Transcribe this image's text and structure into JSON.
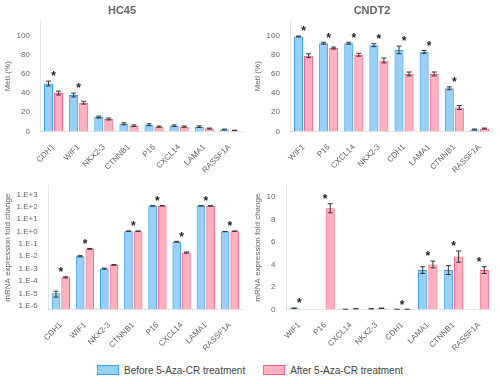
{
  "chart_data": [
    {
      "type": "bar",
      "title": "HC45",
      "categories": [
        "CDH1",
        "WIF1",
        "NKX2-3",
        "CTNNB1",
        "P16",
        "CXCL14",
        "LAMA1",
        "RASSF1A"
      ],
      "series": [
        {
          "name": "Before 5-Aza-CR treatment",
          "values": [
            50,
            38,
            15,
            8,
            7,
            6,
            5,
            2
          ],
          "errors": [
            2.5,
            2.0,
            1.0,
            1.0,
            1.0,
            0.8,
            0.8,
            0.4
          ]
        },
        {
          "name": "After 5-Aza-CR treatment",
          "values": [
            40,
            30,
            13,
            6,
            5,
            5,
            3,
            1
          ],
          "errors": [
            2.0,
            1.5,
            1.0,
            0.8,
            0.6,
            0.6,
            0.5,
            0.3
          ]
        }
      ],
      "ylabel": "MetI (%)",
      "ylim": [
        0,
        115
      ],
      "yticks": [
        0,
        20,
        40,
        60,
        80,
        100
      ],
      "annotations": [
        {
          "category": "CDH1",
          "text": "*"
        },
        {
          "category": "WIF1",
          "text": "*"
        }
      ],
      "grid": false,
      "legend": "bottom"
    },
    {
      "type": "bar",
      "title": "CNDT2",
      "categories": [
        "WIF1",
        "P16",
        "CXCL14",
        "NKX2-3",
        "CDH1",
        "LAMA1",
        "CTNNB1",
        "RASSF1A"
      ],
      "series": [
        {
          "name": "Before 5-Aza-CR treatment",
          "values": [
            99,
            92,
            92,
            90,
            85,
            83,
            45,
            2
          ],
          "errors": [
            0.5,
            1.0,
            1.0,
            1.5,
            4.0,
            1.5,
            1.5,
            0.5
          ]
        },
        {
          "name": "After 5-Aza-CR treatment",
          "values": [
            79,
            87,
            80,
            74,
            60,
            60,
            25,
            3
          ],
          "errors": [
            2.0,
            1.0,
            1.5,
            2.5,
            2.0,
            2.0,
            2.0,
            0.5
          ]
        }
      ],
      "ylabel": "MetI (%)",
      "ylim": [
        0,
        115
      ],
      "yticks": [
        0,
        20,
        40,
        60,
        80,
        100
      ],
      "annotations": [
        {
          "category": "WIF1",
          "text": "*"
        },
        {
          "category": "P16",
          "text": "*"
        },
        {
          "category": "CXCL14",
          "text": "*"
        },
        {
          "category": "NKX2-3",
          "text": "*"
        },
        {
          "category": "CDH1",
          "text": "*"
        },
        {
          "category": "LAMA1",
          "text": "*"
        },
        {
          "category": "CTNNB1",
          "text": "*"
        }
      ],
      "grid": false,
      "legend": "bottom"
    },
    {
      "type": "bar",
      "categories": [
        "CDH1",
        "WIF1",
        "NKX2-3",
        "CTNNB1",
        "P16",
        "CXCL14",
        "LAMA1",
        "RASSF1A"
      ],
      "series": [
        {
          "name": "Before 5-Aza-CR treatment",
          "values": [
            1e-05,
            0.01,
            0.001,
            1.06,
            120.0,
            0.15,
            120.0,
            1.0
          ],
          "errors": [
            5e-06,
            0.001,
            0.0001,
            0.02,
            2.0,
            0.01,
            2.0,
            0.02
          ]
        },
        {
          "name": "After 5-Aza-CR treatment",
          "values": [
            0.0002,
            0.04,
            0.002,
            1.07,
            122.0,
            0.02,
            118.0,
            1.07
          ],
          "errors": [
            2e-05,
            0.003,
            0.0001,
            0.02,
            2.0,
            0.002,
            2.0,
            0.02
          ]
        }
      ],
      "ylabel": "mRNA expression fold change",
      "log": "y",
      "ylim": [
        5e-07,
        5000
      ],
      "yticks": [
        {
          "value": 1e-06,
          "label": "1.E-6"
        },
        {
          "value": 1e-05,
          "label": "1.E-5"
        },
        {
          "value": 0.0001,
          "label": "1.E-4"
        },
        {
          "value": 0.001,
          "label": "1.E-3"
        },
        {
          "value": 0.01,
          "label": "1.E-2"
        },
        {
          "value": 0.1,
          "label": "1.E-1"
        },
        {
          "value": 1,
          "label": "1.E+0"
        },
        {
          "value": 10,
          "label": "1.E+1"
        },
        {
          "value": 100,
          "label": "1.E+2"
        },
        {
          "value": 1000,
          "label": "1.E+3"
        }
      ],
      "annotations": [
        {
          "category": "CDH1",
          "text": "*"
        },
        {
          "category": "WIF1",
          "text": "*"
        },
        {
          "category": "CTNNB1",
          "text": "*"
        },
        {
          "category": "P16",
          "text": "*"
        },
        {
          "category": "CXCL14",
          "text": "*"
        },
        {
          "category": "LAMA1",
          "text": "*"
        },
        {
          "category": "RASSF1A",
          "text": "*"
        }
      ],
      "grid": false,
      "legend": "bottom"
    },
    {
      "type": "bar",
      "categories": [
        "WIF1",
        "P16",
        "CXCL14",
        "NKX2-3",
        "CDH1",
        "LAMA1",
        "CTNNB1",
        "RASSF1A"
      ],
      "series": [
        {
          "name": "Before 5-Aza-CR treatment",
          "values": [
            0.1,
            0.0,
            0.01,
            0.05,
            0.01,
            3.5,
            3.5,
            0.0
          ],
          "errors": [
            0.03,
            0.0,
            0.005,
            0.01,
            0.005,
            0.3,
            0.4,
            0.0
          ]
        },
        {
          "name": "After 5-Aza-CR treatment",
          "values": [
            0.0,
            9.0,
            0.05,
            0.1,
            0.01,
            4.0,
            4.7,
            3.5
          ],
          "errors": [
            0.0,
            0.4,
            0.01,
            0.02,
            0.005,
            0.3,
            0.5,
            0.3
          ]
        }
      ],
      "ylabel": "mRNA expression fold change",
      "ylim": [
        0,
        11
      ],
      "yticks": [
        0,
        2,
        4,
        6,
        8,
        10
      ],
      "annotations": [
        {
          "category": "WIF1",
          "text": "*"
        },
        {
          "category": "P16",
          "text": "*"
        },
        {
          "category": "CDH1",
          "text": "*"
        },
        {
          "category": "LAMA1",
          "text": "*"
        },
        {
          "category": "CTNNB1",
          "text": "*"
        },
        {
          "category": "RASSF1A",
          "text": "*"
        }
      ],
      "grid": false,
      "legend": "bottom"
    }
  ]
}
